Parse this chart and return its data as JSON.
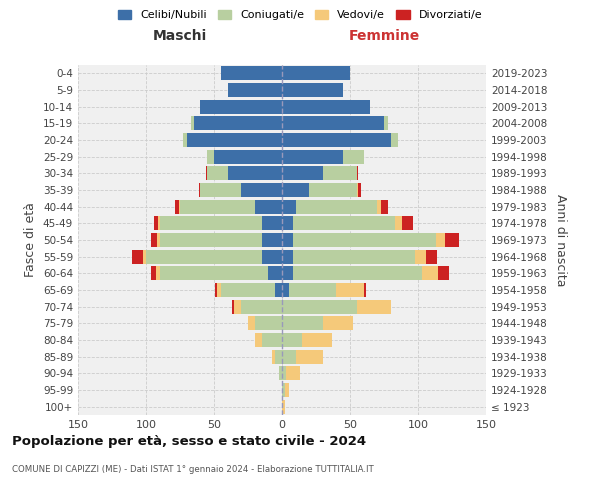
{
  "age_groups": [
    "100+",
    "95-99",
    "90-94",
    "85-89",
    "80-84",
    "75-79",
    "70-74",
    "65-69",
    "60-64",
    "55-59",
    "50-54",
    "45-49",
    "40-44",
    "35-39",
    "30-34",
    "25-29",
    "20-24",
    "15-19",
    "10-14",
    "5-9",
    "0-4"
  ],
  "birth_years": [
    "≤ 1923",
    "1924-1928",
    "1929-1933",
    "1934-1938",
    "1939-1943",
    "1944-1948",
    "1949-1953",
    "1954-1958",
    "1959-1963",
    "1964-1968",
    "1969-1973",
    "1974-1978",
    "1979-1983",
    "1984-1988",
    "1989-1993",
    "1994-1998",
    "1999-2003",
    "2004-2008",
    "2009-2013",
    "2014-2018",
    "2019-2023"
  ],
  "colors": {
    "celibi": "#3d6fa8",
    "coniugati": "#b8cfa0",
    "vedovi": "#f5c97a",
    "divorziati": "#cc2222"
  },
  "maschi": {
    "celibi": [
      0,
      0,
      0,
      0,
      0,
      0,
      0,
      5,
      10,
      15,
      15,
      15,
      20,
      30,
      40,
      50,
      70,
      65,
      60,
      40,
      45
    ],
    "coniugati": [
      0,
      0,
      2,
      5,
      15,
      20,
      30,
      40,
      80,
      85,
      75,
      75,
      55,
      30,
      15,
      5,
      3,
      2,
      0,
      0,
      0
    ],
    "vedovi": [
      0,
      0,
      0,
      2,
      5,
      5,
      5,
      3,
      3,
      2,
      2,
      1,
      1,
      0,
      0,
      0,
      0,
      0,
      0,
      0,
      0
    ],
    "divorziati": [
      0,
      0,
      0,
      0,
      0,
      0,
      2,
      1,
      3,
      8,
      4,
      3,
      3,
      1,
      1,
      0,
      0,
      0,
      0,
      0,
      0
    ]
  },
  "femmine": {
    "celibi": [
      0,
      0,
      0,
      0,
      0,
      0,
      0,
      5,
      8,
      8,
      8,
      8,
      10,
      20,
      30,
      45,
      80,
      75,
      65,
      45,
      50
    ],
    "coniugati": [
      0,
      2,
      3,
      10,
      15,
      30,
      55,
      35,
      95,
      90,
      105,
      75,
      60,
      35,
      25,
      15,
      5,
      3,
      0,
      0,
      0
    ],
    "vedovi": [
      2,
      3,
      10,
      20,
      22,
      22,
      25,
      20,
      12,
      8,
      7,
      5,
      3,
      1,
      0,
      0,
      0,
      0,
      0,
      0,
      0
    ],
    "divorziati": [
      0,
      0,
      0,
      0,
      0,
      0,
      0,
      2,
      8,
      8,
      10,
      8,
      5,
      2,
      1,
      0,
      0,
      0,
      0,
      0,
      0
    ]
  },
  "xlim": 150,
  "title": "Popolazione per età, sesso e stato civile - 2024",
  "subtitle": "COMUNE DI CAPIZZI (ME) - Dati ISTAT 1° gennaio 2024 - Elaborazione TUTTITALIA.IT",
  "xlabel_left": "Maschi",
  "xlabel_right": "Femmine",
  "xlabel_right_color": "#cc3333",
  "ylabel": "Fasce di età",
  "ylabel_right": "Anni di nascita",
  "legend_labels": [
    "Celibi/Nubili",
    "Coniugati/e",
    "Vedovi/e",
    "Divorziati/e"
  ],
  "background_color": "#ffffff",
  "plot_bg_color": "#f0f0f0",
  "grid_color": "#cccccc"
}
